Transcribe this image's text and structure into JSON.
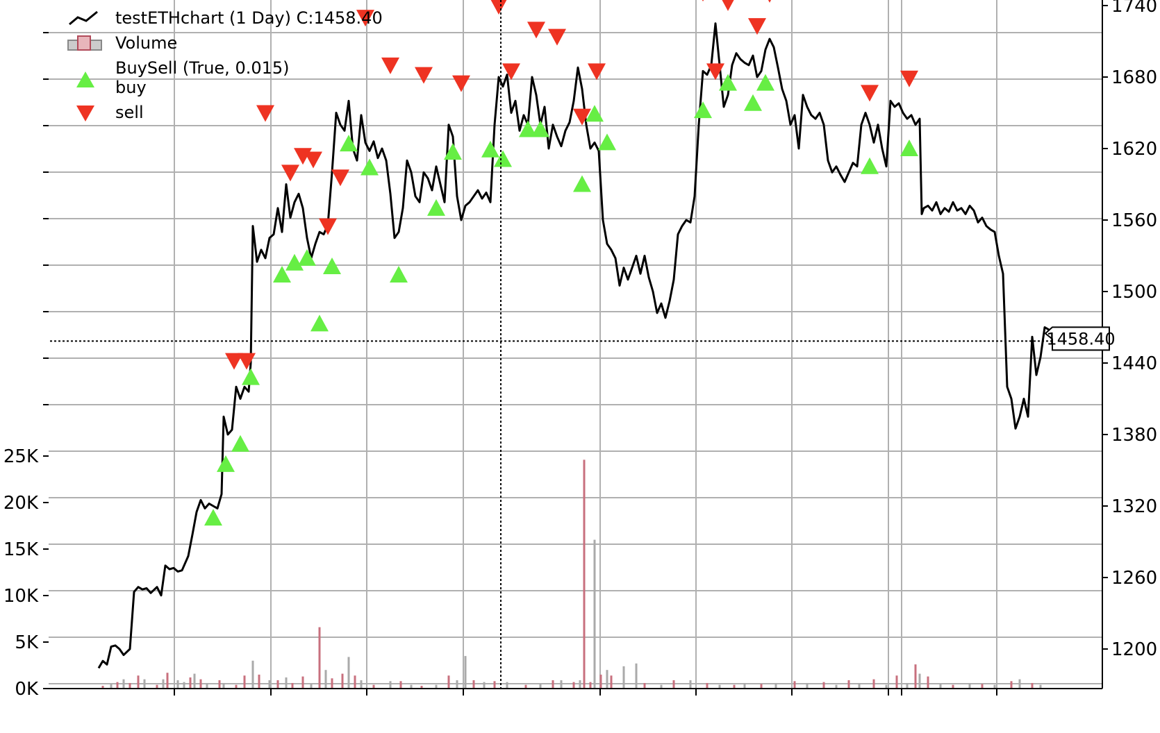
{
  "chart_data": {
    "type": "line",
    "price_axis": {
      "ticks": [
        1200,
        1260,
        1320,
        1380,
        1440,
        1500,
        1560,
        1620,
        1680,
        1740
      ],
      "tick_labels": [
        "1200",
        "1260",
        "1320",
        "1380",
        "1440",
        "1500",
        "1560",
        "1620",
        "1680",
        "1740"
      ]
    },
    "volume_axis": {
      "ticks": [
        0,
        5000,
        10000,
        15000,
        20000,
        25000
      ],
      "tick_labels": [
        "0K",
        "5K",
        "10K",
        "15K",
        "20K",
        "25K"
      ]
    },
    "grid": true,
    "legend": {
      "position": "top-left",
      "items": [
        {
          "label": "testETHchart (1 Day) C:1458.40",
          "marker": "line"
        },
        {
          "label": "Volume",
          "marker": "bar"
        },
        {
          "label": "BuySell (True, 0.015)",
          "marker": "none"
        },
        {
          "label": "buy",
          "marker": "triangle-up"
        },
        {
          "label": "sell",
          "marker": "triangle-down"
        }
      ]
    },
    "last_close_label": "1458.40",
    "crosshair_price": 1458.4,
    "close_series": [
      [
        0,
        1184
      ],
      [
        2,
        1190
      ],
      [
        4,
        1187
      ],
      [
        6,
        1202
      ],
      [
        8,
        1203
      ],
      [
        10,
        1200
      ],
      [
        12,
        1195
      ],
      [
        15,
        1200
      ],
      [
        17,
        1248
      ],
      [
        19,
        1252
      ],
      [
        21,
        1250
      ],
      [
        23,
        1251
      ],
      [
        25,
        1247
      ],
      [
        28,
        1252
      ],
      [
        30,
        1245
      ],
      [
        32,
        1270
      ],
      [
        34,
        1267
      ],
      [
        36,
        1268
      ],
      [
        38,
        1265
      ],
      [
        40,
        1266
      ],
      [
        43,
        1278
      ],
      [
        45,
        1296
      ],
      [
        47,
        1315
      ],
      [
        49,
        1325
      ],
      [
        51,
        1318
      ],
      [
        53,
        1322
      ],
      [
        55,
        1320
      ],
      [
        57,
        1318
      ],
      [
        59,
        1330
      ],
      [
        60,
        1395
      ],
      [
        62,
        1380
      ],
      [
        64,
        1384
      ],
      [
        66,
        1420
      ],
      [
        68,
        1410
      ],
      [
        70,
        1420
      ],
      [
        72,
        1416
      ],
      [
        73,
        1440
      ],
      [
        74,
        1555
      ],
      [
        76,
        1525
      ],
      [
        78,
        1535
      ],
      [
        80,
        1528
      ],
      [
        82,
        1545
      ],
      [
        84,
        1548
      ],
      [
        86,
        1570
      ],
      [
        88,
        1550
      ],
      [
        90,
        1590
      ],
      [
        92,
        1562
      ],
      [
        94,
        1575
      ],
      [
        96,
        1582
      ],
      [
        98,
        1570
      ],
      [
        100,
        1545
      ],
      [
        102,
        1528
      ],
      [
        104,
        1540
      ],
      [
        106,
        1550
      ],
      [
        108,
        1548
      ],
      [
        110,
        1556
      ],
      [
        112,
        1600
      ],
      [
        114,
        1650
      ],
      [
        116,
        1640
      ],
      [
        118,
        1635
      ],
      [
        120,
        1660
      ],
      [
        122,
        1620
      ],
      [
        124,
        1610
      ],
      [
        126,
        1648
      ],
      [
        128,
        1625
      ],
      [
        130,
        1618
      ],
      [
        132,
        1626
      ],
      [
        134,
        1612
      ],
      [
        136,
        1620
      ],
      [
        138,
        1610
      ],
      [
        140,
        1582
      ],
      [
        142,
        1545
      ],
      [
        144,
        1550
      ],
      [
        146,
        1570
      ],
      [
        148,
        1610
      ],
      [
        150,
        1600
      ],
      [
        152,
        1580
      ],
      [
        154,
        1575
      ],
      [
        156,
        1600
      ],
      [
        158,
        1595
      ],
      [
        160,
        1585
      ],
      [
        162,
        1605
      ],
      [
        164,
        1590
      ],
      [
        166,
        1575
      ],
      [
        168,
        1640
      ],
      [
        170,
        1630
      ],
      [
        172,
        1580
      ],
      [
        174,
        1560
      ],
      [
        176,
        1572
      ],
      [
        178,
        1575
      ],
      [
        180,
        1580
      ],
      [
        182,
        1585
      ],
      [
        184,
        1578
      ],
      [
        186,
        1583
      ],
      [
        188,
        1575
      ],
      [
        190,
        1640
      ],
      [
        192,
        1680
      ],
      [
        194,
        1672
      ],
      [
        196,
        1682
      ],
      [
        198,
        1650
      ],
      [
        200,
        1660
      ],
      [
        202,
        1635
      ],
      [
        204,
        1648
      ],
      [
        206,
        1640
      ],
      [
        208,
        1680
      ],
      [
        210,
        1665
      ],
      [
        212,
        1640
      ],
      [
        214,
        1655
      ],
      [
        216,
        1620
      ],
      [
        218,
        1640
      ],
      [
        220,
        1630
      ],
      [
        222,
        1622
      ],
      [
        224,
        1635
      ],
      [
        226,
        1642
      ],
      [
        228,
        1660
      ],
      [
        230,
        1688
      ],
      [
        232,
        1670
      ],
      [
        234,
        1640
      ],
      [
        236,
        1620
      ],
      [
        238,
        1625
      ],
      [
        240,
        1618
      ],
      [
        242,
        1560
      ],
      [
        244,
        1540
      ],
      [
        246,
        1535
      ],
      [
        248,
        1528
      ],
      [
        250,
        1505
      ],
      [
        252,
        1520
      ],
      [
        254,
        1510
      ],
      [
        256,
        1520
      ],
      [
        258,
        1530
      ],
      [
        260,
        1515
      ],
      [
        262,
        1530
      ],
      [
        264,
        1512
      ],
      [
        266,
        1500
      ],
      [
        268,
        1482
      ],
      [
        270,
        1490
      ],
      [
        272,
        1478
      ],
      [
        274,
        1492
      ],
      [
        276,
        1510
      ],
      [
        278,
        1548
      ],
      [
        280,
        1555
      ],
      [
        282,
        1560
      ],
      [
        284,
        1558
      ],
      [
        286,
        1580
      ],
      [
        288,
        1640
      ],
      [
        290,
        1685
      ],
      [
        292,
        1682
      ],
      [
        294,
        1690
      ],
      [
        296,
        1725
      ],
      [
        298,
        1690
      ],
      [
        300,
        1655
      ],
      [
        302,
        1665
      ],
      [
        304,
        1690
      ],
      [
        306,
        1700
      ],
      [
        308,
        1695
      ],
      [
        310,
        1692
      ],
      [
        312,
        1690
      ],
      [
        314,
        1698
      ],
      [
        316,
        1680
      ],
      [
        318,
        1685
      ],
      [
        320,
        1703
      ],
      [
        322,
        1712
      ],
      [
        324,
        1705
      ],
      [
        326,
        1688
      ],
      [
        328,
        1670
      ],
      [
        330,
        1660
      ],
      [
        332,
        1640
      ],
      [
        334,
        1648
      ],
      [
        336,
        1620
      ],
      [
        338,
        1665
      ],
      [
        340,
        1655
      ],
      [
        342,
        1648
      ],
      [
        344,
        1645
      ],
      [
        346,
        1650
      ],
      [
        348,
        1640
      ],
      [
        350,
        1610
      ],
      [
        352,
        1600
      ],
      [
        354,
        1605
      ],
      [
        356,
        1598
      ],
      [
        358,
        1592
      ],
      [
        360,
        1600
      ],
      [
        362,
        1608
      ],
      [
        364,
        1605
      ],
      [
        366,
        1640
      ],
      [
        368,
        1650
      ],
      [
        370,
        1640
      ],
      [
        372,
        1625
      ],
      [
        374,
        1640
      ],
      [
        376,
        1620
      ],
      [
        378,
        1605
      ],
      [
        380,
        1660
      ],
      [
        382,
        1655
      ],
      [
        384,
        1658
      ],
      [
        386,
        1650
      ],
      [
        388,
        1645
      ],
      [
        390,
        1648
      ],
      [
        392,
        1640
      ],
      [
        394,
        1645
      ],
      [
        395,
        1565
      ],
      [
        396,
        1570
      ],
      [
        398,
        1572
      ],
      [
        400,
        1568
      ],
      [
        402,
        1575
      ],
      [
        404,
        1565
      ],
      [
        406,
        1570
      ],
      [
        408,
        1567
      ],
      [
        410,
        1575
      ],
      [
        412,
        1568
      ],
      [
        414,
        1570
      ],
      [
        416,
        1565
      ],
      [
        418,
        1572
      ],
      [
        420,
        1568
      ],
      [
        422,
        1558
      ],
      [
        424,
        1562
      ],
      [
        426,
        1555
      ],
      [
        428,
        1552
      ],
      [
        430,
        1550
      ],
      [
        432,
        1530
      ],
      [
        434,
        1515
      ],
      [
        436,
        1420
      ],
      [
        438,
        1410
      ],
      [
        440,
        1385
      ],
      [
        442,
        1395
      ],
      [
        444,
        1410
      ],
      [
        446,
        1395
      ],
      [
        448,
        1462
      ],
      [
        450,
        1430
      ],
      [
        452,
        1445
      ],
      [
        454,
        1470
      ],
      [
        456,
        1468
      ]
    ],
    "buy_signals": [
      [
        55,
        1310
      ],
      [
        61,
        1355
      ],
      [
        68,
        1372
      ],
      [
        73,
        1428
      ],
      [
        88,
        1514
      ],
      [
        94,
        1524
      ],
      [
        100,
        1528
      ],
      [
        106,
        1473
      ],
      [
        112,
        1521
      ],
      [
        120,
        1624
      ],
      [
        130,
        1604
      ],
      [
        144,
        1514
      ],
      [
        162,
        1570
      ],
      [
        170,
        1617
      ],
      [
        188,
        1619
      ],
      [
        194,
        1611
      ],
      [
        206,
        1636
      ],
      [
        212,
        1636
      ],
      [
        232,
        1590
      ],
      [
        238,
        1649
      ],
      [
        244,
        1625
      ],
      [
        290,
        1652
      ],
      [
        302,
        1675
      ],
      [
        314,
        1658
      ],
      [
        320,
        1675
      ],
      [
        370,
        1605
      ],
      [
        389,
        1620
      ]
    ],
    "sell_signals": [
      [
        65,
        1442
      ],
      [
        71,
        1442
      ],
      [
        80,
        1650
      ],
      [
        92,
        1600
      ],
      [
        98,
        1614
      ],
      [
        103,
        1611
      ],
      [
        110,
        1555
      ],
      [
        116,
        1596
      ],
      [
        128,
        1730
      ],
      [
        140,
        1690
      ],
      [
        156,
        1682
      ],
      [
        174,
        1675
      ],
      [
        192,
        1740
      ],
      [
        198,
        1685
      ],
      [
        210,
        1720
      ],
      [
        220,
        1714
      ],
      [
        232,
        1647
      ],
      [
        239,
        1685
      ],
      [
        290,
        1751
      ],
      [
        296,
        1685
      ],
      [
        302,
        1743
      ],
      [
        316,
        1723
      ],
      [
        322,
        1750
      ],
      [
        370,
        1667
      ],
      [
        389,
        1679
      ]
    ],
    "volume_bars": [
      [
        2,
        300,
        "up"
      ],
      [
        6,
        500,
        "down"
      ],
      [
        9,
        700,
        "up"
      ],
      [
        12,
        1000,
        "down"
      ],
      [
        15,
        600,
        "up"
      ],
      [
        19,
        1400,
        "up"
      ],
      [
        22,
        1000,
        "down"
      ],
      [
        28,
        400,
        "up"
      ],
      [
        31,
        1000,
        "down"
      ],
      [
        33,
        1700,
        "up"
      ],
      [
        38,
        900,
        "down"
      ],
      [
        41,
        700,
        "down"
      ],
      [
        44,
        1200,
        "up"
      ],
      [
        46,
        1600,
        "down"
      ],
      [
        49,
        1000,
        "up"
      ],
      [
        52,
        600,
        "down"
      ],
      [
        58,
        900,
        "up"
      ],
      [
        60,
        600,
        "down"
      ],
      [
        66,
        400,
        "up"
      ],
      [
        70,
        1400,
        "up"
      ],
      [
        74,
        3000,
        "down"
      ],
      [
        77,
        1500,
        "up"
      ],
      [
        82,
        900,
        "down"
      ],
      [
        86,
        900,
        "up"
      ],
      [
        90,
        1200,
        "down"
      ],
      [
        93,
        600,
        "up"
      ],
      [
        98,
        1300,
        "up"
      ],
      [
        102,
        500,
        "down"
      ],
      [
        106,
        6600,
        "up"
      ],
      [
        109,
        2000,
        "down"
      ],
      [
        112,
        1100,
        "up"
      ],
      [
        117,
        1600,
        "up"
      ],
      [
        120,
        3400,
        "down"
      ],
      [
        123,
        1400,
        "up"
      ],
      [
        126,
        900,
        "down"
      ],
      [
        132,
        400,
        "up"
      ],
      [
        140,
        800,
        "down"
      ],
      [
        145,
        800,
        "up"
      ],
      [
        150,
        400,
        "down"
      ],
      [
        155,
        300,
        "up"
      ],
      [
        162,
        400,
        "down"
      ],
      [
        168,
        1400,
        "up"
      ],
      [
        172,
        900,
        "down"
      ],
      [
        176,
        3500,
        "down"
      ],
      [
        180,
        900,
        "up"
      ],
      [
        185,
        700,
        "down"
      ],
      [
        190,
        800,
        "up"
      ],
      [
        196,
        700,
        "down"
      ],
      [
        205,
        400,
        "up"
      ],
      [
        212,
        500,
        "down"
      ],
      [
        218,
        900,
        "up"
      ],
      [
        222,
        900,
        "down"
      ],
      [
        228,
        700,
        "up"
      ],
      [
        231,
        900,
        "down"
      ],
      [
        233,
        24600,
        "up"
      ],
      [
        236,
        700,
        "up"
      ],
      [
        238,
        16000,
        "down"
      ],
      [
        241,
        1500,
        "up"
      ],
      [
        244,
        2000,
        "down"
      ],
      [
        246,
        1400,
        "up"
      ],
      [
        252,
        2400,
        "down"
      ],
      [
        258,
        2700,
        "down"
      ],
      [
        262,
        600,
        "up"
      ],
      [
        270,
        400,
        "down"
      ],
      [
        276,
        900,
        "up"
      ],
      [
        284,
        900,
        "down"
      ],
      [
        292,
        600,
        "up"
      ],
      [
        298,
        400,
        "down"
      ],
      [
        305,
        400,
        "up"
      ],
      [
        310,
        600,
        "down"
      ],
      [
        318,
        500,
        "up"
      ],
      [
        325,
        600,
        "down"
      ],
      [
        334,
        800,
        "up"
      ],
      [
        340,
        600,
        "down"
      ],
      [
        348,
        700,
        "up"
      ],
      [
        354,
        400,
        "down"
      ],
      [
        360,
        900,
        "up"
      ],
      [
        365,
        600,
        "down"
      ],
      [
        372,
        1000,
        "up"
      ],
      [
        378,
        400,
        "down"
      ],
      [
        383,
        1400,
        "up"
      ],
      [
        388,
        600,
        "down"
      ],
      [
        392,
        2600,
        "up"
      ],
      [
        394,
        1600,
        "down"
      ],
      [
        398,
        1300,
        "up"
      ],
      [
        404,
        500,
        "down"
      ],
      [
        410,
        400,
        "up"
      ],
      [
        418,
        600,
        "down"
      ],
      [
        424,
        500,
        "up"
      ],
      [
        430,
        400,
        "down"
      ],
      [
        438,
        800,
        "up"
      ],
      [
        442,
        1000,
        "down"
      ],
      [
        448,
        600,
        "up"
      ],
      [
        452,
        400,
        "down"
      ]
    ]
  }
}
